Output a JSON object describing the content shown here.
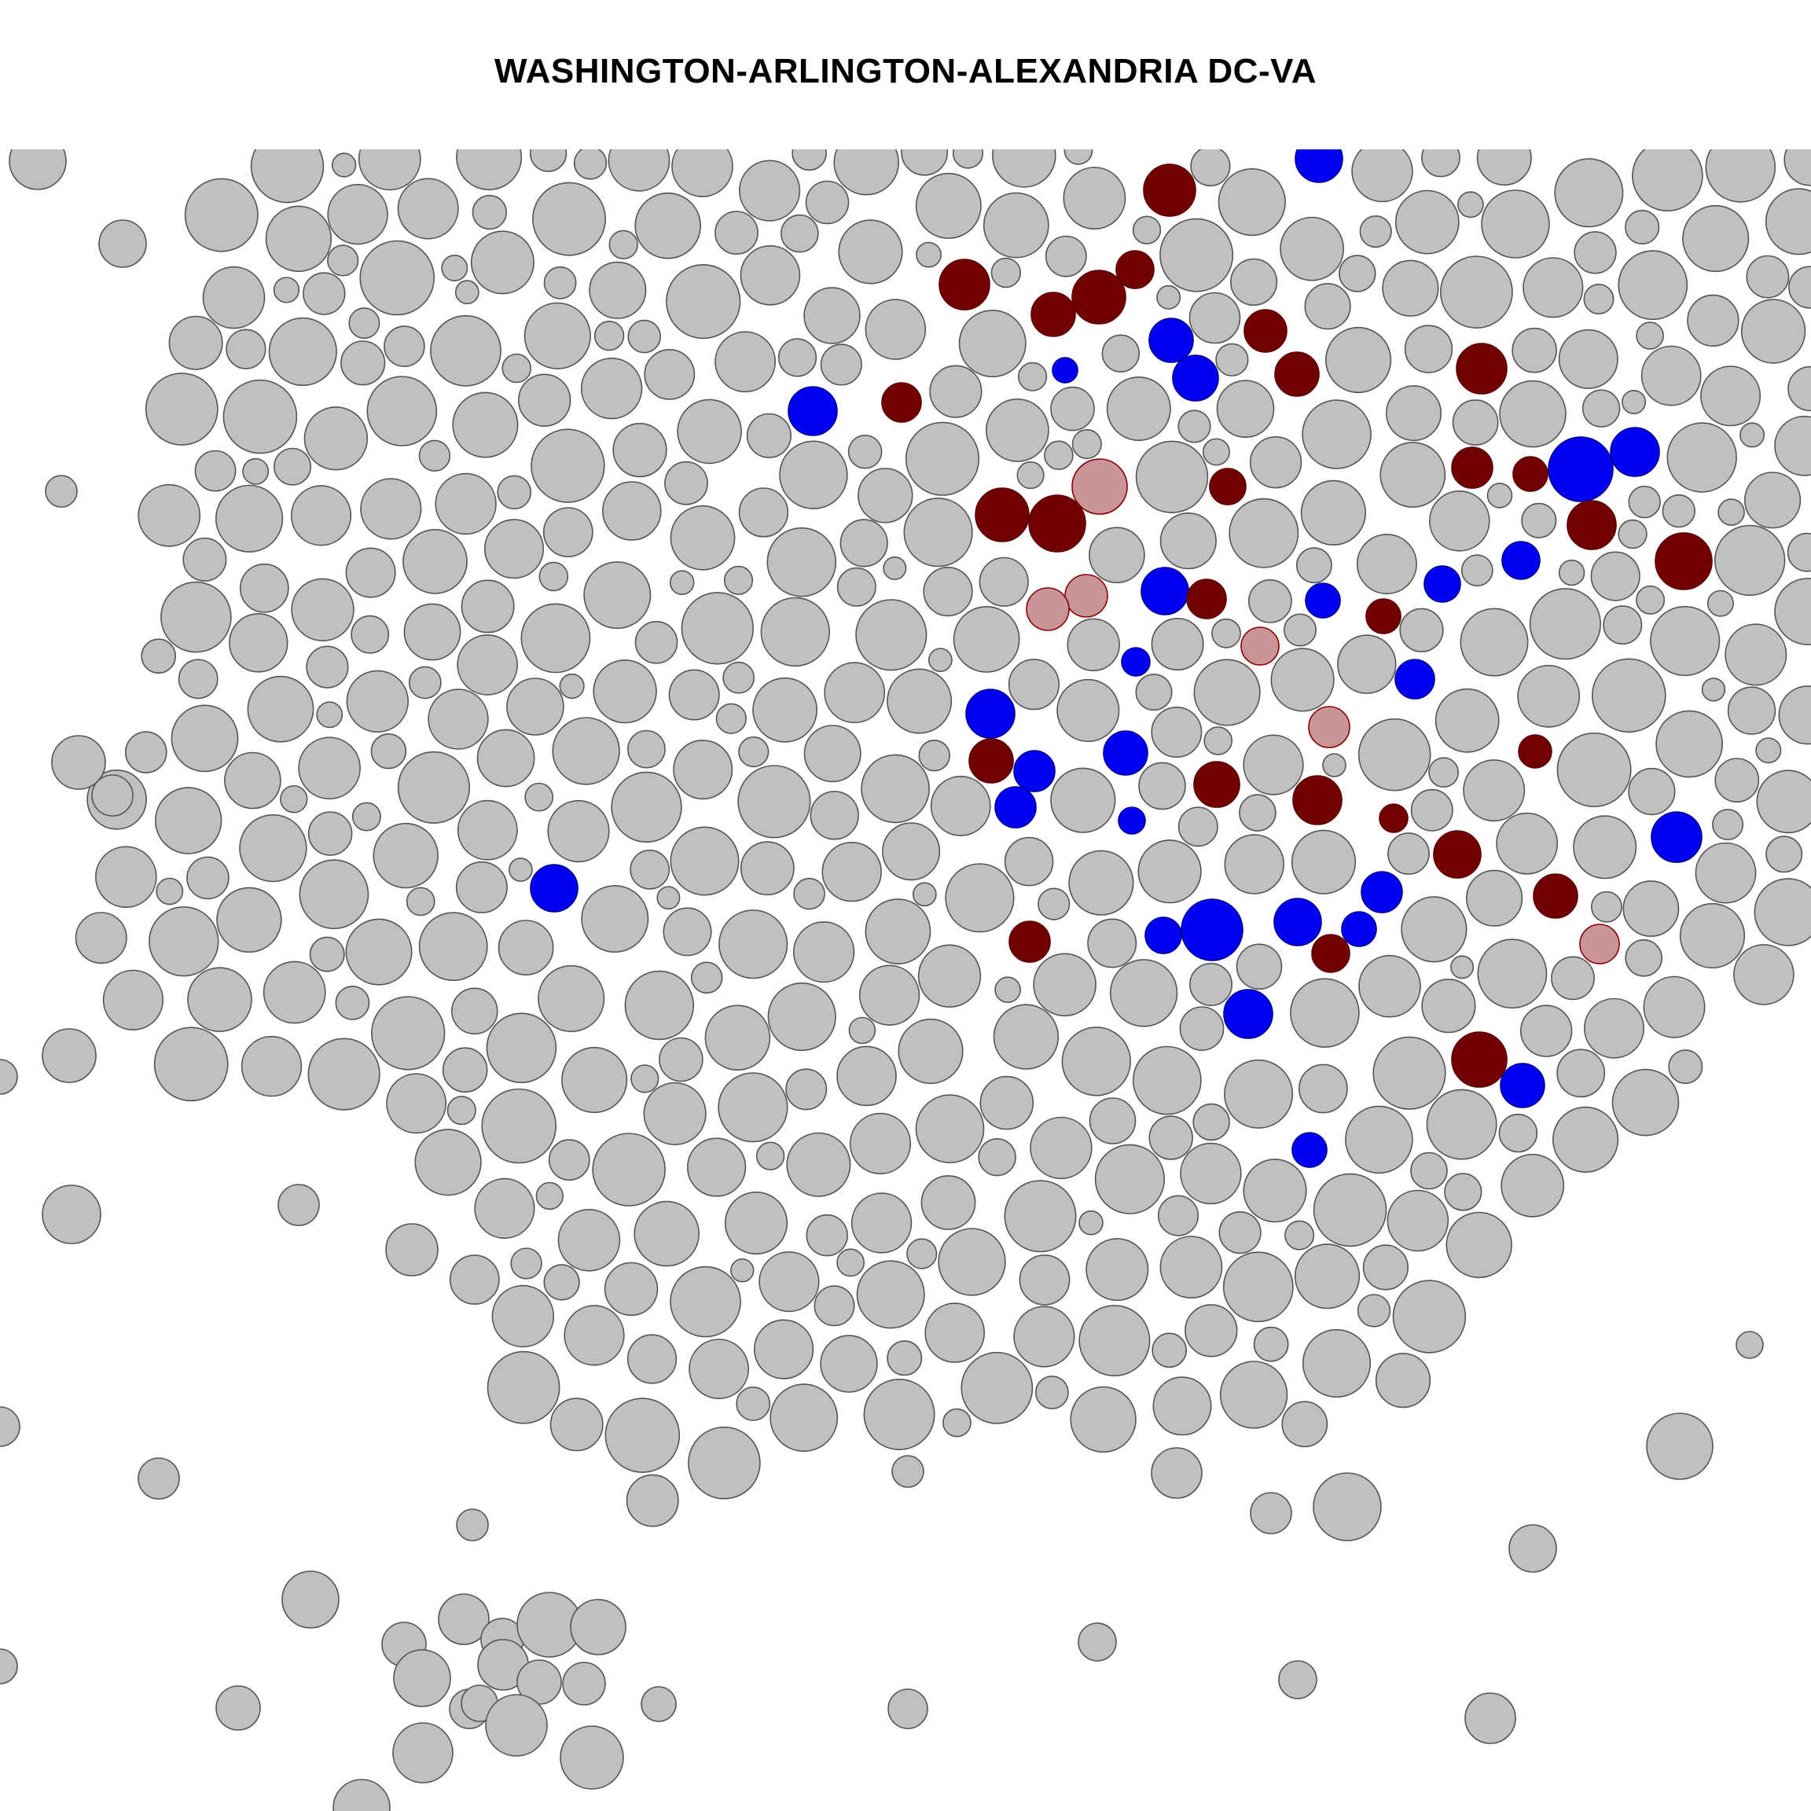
{
  "title": "WASHINGTON-ARLINGTON-ALEXANDRIA DC-VA",
  "colors": {
    "default_fill": "#c0c0c0",
    "default_stroke": "#555555",
    "dark_red": "#730000",
    "light_red": "#c99596",
    "blue": "#0000f5",
    "background": "#ffffff"
  }
}
